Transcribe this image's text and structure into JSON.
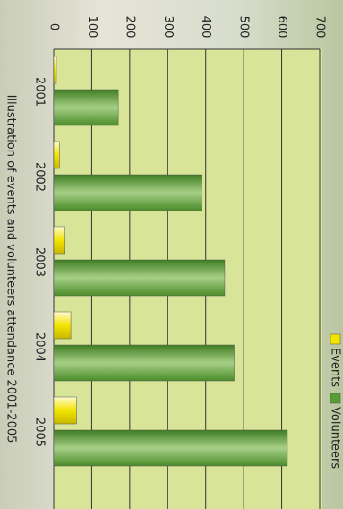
{
  "chart_data": {
    "type": "bar",
    "title": "Illustration of events and volunteers attendance 2001-2005",
    "categories": [
      "2001",
      "2002",
      "2003",
      "2004",
      "2005"
    ],
    "series": [
      {
        "name": "Events",
        "color": "#f2e400",
        "values": [
          7,
          15,
          30,
          45,
          60
        ]
      },
      {
        "name": "Volunteers",
        "color": "#5a9e32",
        "values": [
          170,
          390,
          450,
          475,
          615
        ]
      }
    ],
    "ylim": [
      0,
      700
    ],
    "yticks": [
      0,
      100,
      200,
      300,
      400,
      500,
      600,
      700
    ],
    "grid": true,
    "legend": "top-right"
  }
}
